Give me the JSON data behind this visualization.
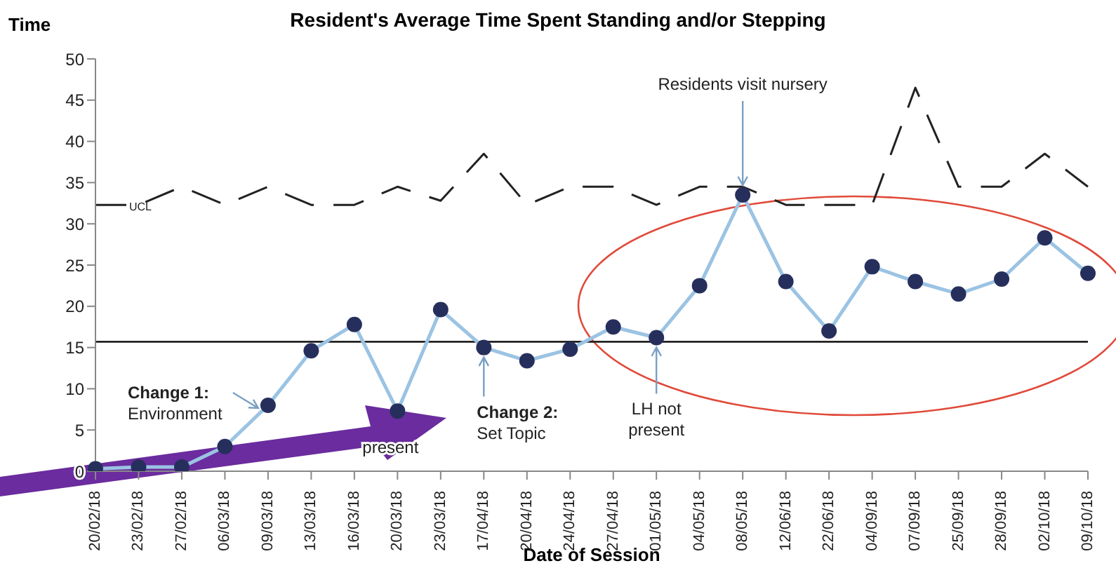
{
  "chart_data": {
    "type": "line",
    "title": "Resident's Average Time Spent Standing and/or Stepping",
    "xlabel": "Date of Session",
    "ylabel": "Time",
    "categories": [
      "20/02/18",
      "23/02/18",
      "27/02/18",
      "06/03/18",
      "09/03/18",
      "13/03/18",
      "16/03/18",
      "20/03/18",
      "23/03/18",
      "17/04/18",
      "20/04/18",
      "24/04/18",
      "27/04/18",
      "01/05/18",
      "04/05/18",
      "08/05/18",
      "12/06/18",
      "22/06/18",
      "04/09/18",
      "07/09/18",
      "25/09/18",
      "28/09/18",
      "02/10/18",
      "09/10/18"
    ],
    "series": [
      {
        "color": "#9bc3e3",
        "marker": "circle",
        "line_style": "solid",
        "values": [
          0.3,
          0.5,
          0.5,
          3,
          8,
          14.6,
          17.8,
          7.3,
          19.6,
          15,
          13.4,
          14.8,
          17.5,
          16.2,
          22.5,
          33.5,
          23,
          17,
          24.8,
          23,
          21.5,
          23.3,
          28.3,
          24
        ]
      },
      {
        "name": "UCL",
        "color": "#222222",
        "marker": "none",
        "line_style": "dashed",
        "values": [
          32.3,
          32.3,
          34.5,
          32.3,
          34.5,
          32.3,
          32.3,
          34.5,
          32.8,
          38.5,
          32.3,
          34.5,
          34.5,
          32.3,
          34.5,
          34.5,
          32.3,
          32.3,
          32.3,
          46.5,
          34.5,
          34.5,
          38.5,
          34.5
        ]
      }
    ],
    "ref_lines": [
      {
        "axis": "y",
        "value": 15.7,
        "color": "#222222"
      }
    ],
    "annotations": [
      {
        "text": "Change 1: Environment",
        "x": "09/03/18",
        "y": 8
      },
      {
        "text": "present",
        "x": "20/03/18",
        "y": 7.3
      },
      {
        "text": "Change 2: Set Topic",
        "x": "17/04/18",
        "y": 15
      },
      {
        "text": "LH not present",
        "x": "01/05/18",
        "y": 16.2
      },
      {
        "text": "Residents visit nursery",
        "x": "08/05/18",
        "y": 33.5
      }
    ],
    "ylim": [
      0,
      50
    ],
    "yticks": [
      0,
      5,
      10,
      15,
      20,
      25,
      30,
      35,
      40,
      45,
      50
    ],
    "grid": false,
    "legend": false
  }
}
